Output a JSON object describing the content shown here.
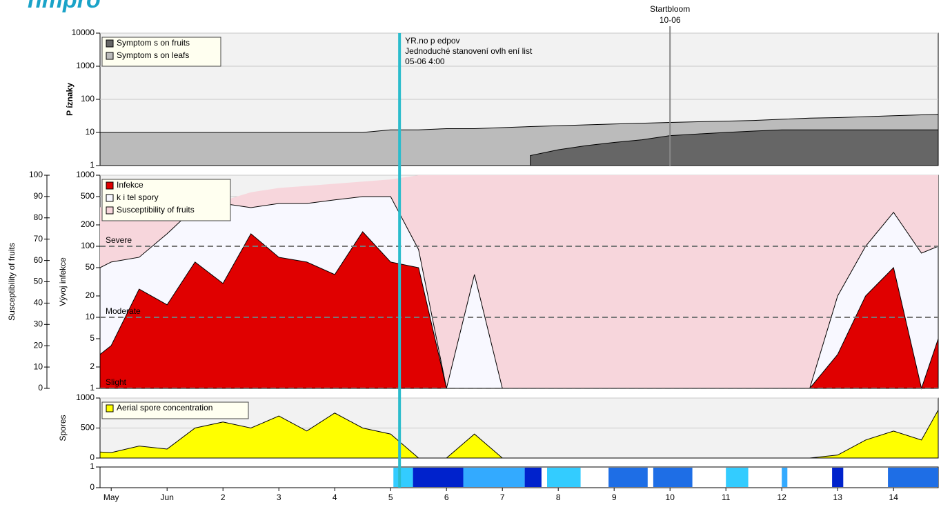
{
  "logo": "nmpro",
  "chart_data": [
    {
      "type": "area",
      "ylabel": "P íznaky",
      "log_y": true,
      "grid": true,
      "legend_loc": "upper left",
      "background": "#f2f2f2",
      "x": [
        -0.2,
        0,
        0.5,
        1,
        1.5,
        2,
        2.5,
        3,
        3.5,
        4,
        4.5,
        5,
        5.5,
        6,
        6.5,
        7,
        7.5,
        8,
        8.5,
        9,
        9.5,
        10,
        10.5,
        11,
        11.5,
        12,
        12.5,
        13,
        13.5,
        14,
        14.5,
        14.8
      ],
      "xlim": [
        -0.2,
        14.8
      ],
      "ylim": [
        1,
        10000
      ],
      "yticks": [
        1,
        10,
        100,
        1000,
        10000
      ],
      "series": [
        {
          "name": "Symptom s on fruits",
          "color": "#666666",
          "edgecolor": "#000000",
          "values": [
            null,
            null,
            null,
            null,
            null,
            null,
            null,
            null,
            null,
            null,
            null,
            null,
            null,
            null,
            null,
            null,
            2,
            3,
            4,
            5,
            6,
            8,
            9,
            10,
            11,
            12,
            12,
            12,
            12,
            12,
            12,
            12
          ]
        },
        {
          "name": "Symptom s on leafs",
          "color": "#bbbbbb",
          "edgecolor": "#000000",
          "values": [
            10,
            10,
            10,
            10,
            10,
            10,
            10,
            10,
            10,
            10,
            10,
            12,
            12,
            13,
            13,
            14,
            15,
            16,
            17,
            18,
            19,
            20,
            21,
            22,
            23,
            25,
            27,
            28,
            30,
            32,
            34,
            35
          ]
        }
      ],
      "annotations": [
        {
          "x": 10,
          "lines": [
            "Startbloom",
            "10-06"
          ],
          "color": "#888888",
          "text_position": "above"
        },
        {
          "x": 5.16,
          "lines": [
            "YR.no p edpov",
            "Jednoduché stanovení ovlh ení list",
            "05-06 4:00"
          ],
          "color": "#2bbccc",
          "text_position": "right"
        }
      ]
    },
    {
      "type": "area",
      "ylabel": "Vývoj infekce",
      "y2label": "Susceptibility of fruits",
      "log_y": true,
      "grid": true,
      "legend_loc": "upper left",
      "background": "#f2f2f2",
      "x": [
        -0.2,
        0,
        0.5,
        1,
        1.5,
        2,
        2.5,
        3,
        3.5,
        4,
        4.5,
        5,
        5.5,
        6,
        6.5,
        7,
        7.5,
        8,
        8.5,
        9,
        9.5,
        10,
        10.5,
        11,
        11.5,
        12,
        12.5,
        13,
        13.5,
        14,
        14.5,
        14.8
      ],
      "xlim": [
        -0.2,
        14.8
      ],
      "ylim": [
        1,
        1000
      ],
      "yticks": [
        1,
        2,
        5,
        10,
        20,
        50,
        100,
        200,
        500,
        1000
      ],
      "y2lim": [
        0,
        100
      ],
      "y2ticks": [
        0,
        10,
        20,
        30,
        40,
        50,
        60,
        70,
        80,
        90,
        100
      ],
      "series": [
        {
          "name": "Infekce",
          "color": "#e00000",
          "edgecolor": "#000000",
          "values": [
            3,
            4,
            25,
            15,
            60,
            30,
            150,
            70,
            60,
            40,
            160,
            60,
            50,
            1,
            1,
            1,
            1,
            1,
            1,
            1,
            1,
            1,
            1,
            1,
            1,
            1,
            1,
            3,
            20,
            50,
            1,
            5
          ]
        },
        {
          "name": "k i tel spory",
          "color": "#f8f8ff",
          "edgecolor": "#000000",
          "values": [
            50,
            60,
            70,
            150,
            350,
            400,
            350,
            400,
            400,
            450,
            500,
            500,
            90,
            1,
            40,
            1,
            1,
            1,
            1,
            1,
            1,
            1,
            1,
            1,
            1,
            1,
            1,
            20,
            100,
            300,
            80,
            100
          ]
        },
        {
          "name": "Susceptibility of fruits",
          "color": "#f7d6dc",
          "edgecolor": "none",
          "axis": "y2",
          "values": [
            85,
            85,
            86,
            87,
            88,
            88,
            92,
            94,
            95,
            96,
            97,
            98,
            100,
            100,
            100,
            100,
            100,
            100,
            100,
            100,
            100,
            100,
            100,
            100,
            100,
            100,
            100,
            100,
            100,
            100,
            100,
            100
          ]
        }
      ],
      "thresholds": [
        {
          "value": 100,
          "label": "Severe"
        },
        {
          "value": 10,
          "label": "Moderate"
        },
        {
          "value": 1,
          "label": "Slight"
        }
      ]
    },
    {
      "type": "area",
      "ylabel": "Spores",
      "grid": true,
      "legend_loc": "upper left",
      "background": "#f2f2f2",
      "x": [
        -0.2,
        0,
        0.5,
        1,
        1.5,
        2,
        2.5,
        3,
        3.5,
        4,
        4.5,
        5,
        5.5,
        6,
        6.5,
        7,
        7.5,
        8,
        8.5,
        9,
        9.5,
        10,
        10.5,
        11,
        11.5,
        12,
        12.5,
        13,
        13.5,
        14,
        14.5,
        14.8
      ],
      "xlim": [
        -0.2,
        14.8
      ],
      "ylim": [
        0,
        1000
      ],
      "yticks": [
        0,
        500,
        1000
      ],
      "series": [
        {
          "name": "Aerial spore concentration",
          "color": "#ffff00",
          "edgecolor": "#000000",
          "values": [
            100,
            90,
            200,
            150,
            500,
            600,
            500,
            700,
            450,
            750,
            500,
            400,
            0,
            0,
            400,
            0,
            0,
            0,
            0,
            0,
            0,
            0,
            0,
            0,
            0,
            0,
            0,
            50,
            300,
            450,
            300,
            800
          ]
        }
      ]
    },
    {
      "type": "strip",
      "background": "#ffffff",
      "xlim": [
        -0.2,
        14.8
      ],
      "ylim": [
        0,
        1
      ],
      "yticks": [
        0,
        1
      ],
      "xticks": [
        {
          "value": 0,
          "label": "May"
        },
        {
          "value": 1,
          "label": "Jun"
        },
        2,
        3,
        4,
        5,
        6,
        7,
        8,
        9,
        10,
        11,
        12,
        13,
        14
      ],
      "bands": [
        {
          "x0": 5.05,
          "x1": 5.4,
          "color": "#33ccff"
        },
        {
          "x0": 5.4,
          "x1": 6.3,
          "color": "#0022cc"
        },
        {
          "x0": 6.3,
          "x1": 7.4,
          "color": "#33aaff"
        },
        {
          "x0": 7.4,
          "x1": 7.7,
          "color": "#0022cc"
        },
        {
          "x0": 7.8,
          "x1": 8.4,
          "color": "#33ccff"
        },
        {
          "x0": 8.9,
          "x1": 9.6,
          "color": "#1e6ee6"
        },
        {
          "x0": 9.7,
          "x1": 10.4,
          "color": "#1e6ee6"
        },
        {
          "x0": 11.0,
          "x1": 11.4,
          "color": "#33ccff"
        },
        {
          "x0": 12.0,
          "x1": 12.1,
          "color": "#33aaff"
        },
        {
          "x0": 12.9,
          "x1": 13.1,
          "color": "#0022cc"
        },
        {
          "x0": 13.9,
          "x1": 14.8,
          "color": "#1e6ee6"
        }
      ]
    }
  ]
}
